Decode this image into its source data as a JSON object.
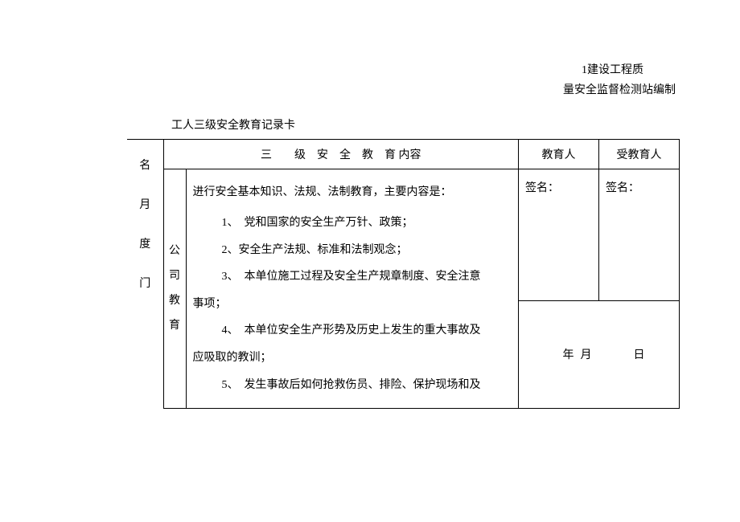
{
  "header": {
    "line1": "1建设工程质",
    "line2": "量安全监督检测站编制"
  },
  "title": "工人三级安全教育记录卡",
  "table": {
    "leftLabel": "名　月　度　门",
    "headerRow": {
      "content": "三　　级　安　全　教　育 内容",
      "educator": "教育人",
      "recipient": "受教育人"
    },
    "subLabel": "公司教育",
    "body": {
      "intro": "进行安全基本知识、法规、法制教育，主要内容是：",
      "items": [
        "1、　党和国家的安全生产万针、政策；",
        "2、安全生产法规、标准和法制观念；",
        "3、　本单位施工过程及安全生产规章制度、安全注意",
        "4、　本单位安全生产形势及历史上发生的重大事故及",
        "5、　发生事故后如何抢救伤员、排险、保护现场和及"
      ],
      "itemCont1": "事项；",
      "itemCont2": "应吸取的教训；"
    },
    "signature": "签名：",
    "date": {
      "year": "年",
      "month": "月",
      "day": "日"
    }
  },
  "colors": {
    "background": "#ffffff",
    "text": "#000000",
    "border": "#000000"
  }
}
